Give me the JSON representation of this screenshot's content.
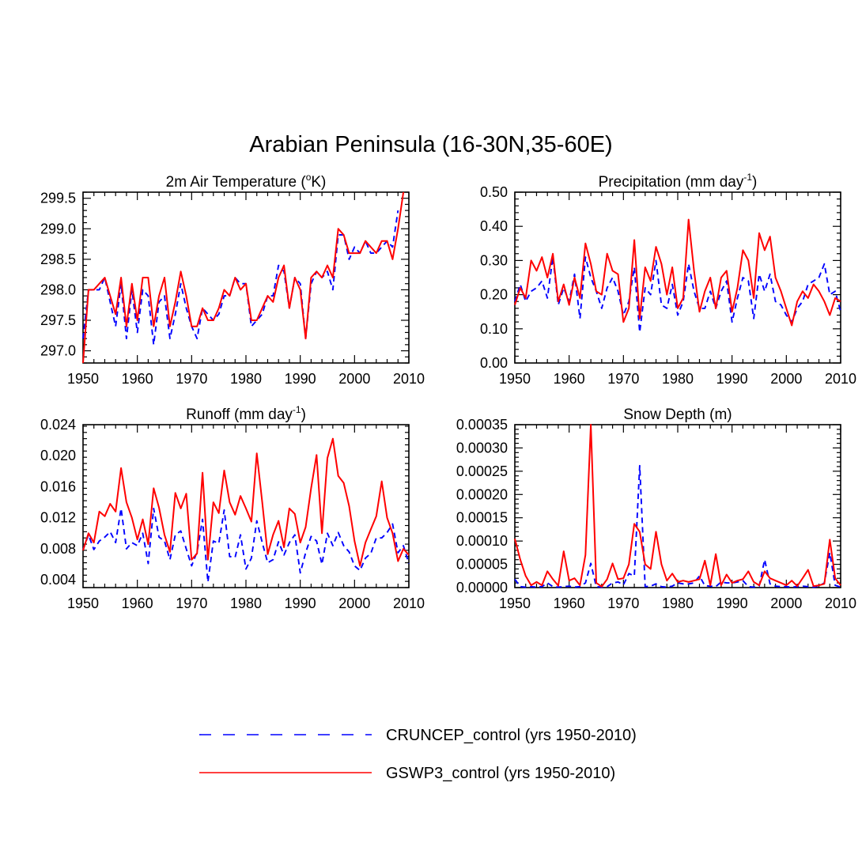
{
  "title": "Arabian Peninsula (16-30N,35-60E)",
  "colors": {
    "cruncep": "#0000ff",
    "gswp3": "#ff0000"
  },
  "legend": {
    "cruncep_label": "CRUNCEP_control (yrs 1950-2010)",
    "gswp3_label": "GSWP3_control (yrs 1950-2010)"
  },
  "chart_data": [
    {
      "type": "line",
      "title": "2m Air Temperature (",
      "title_sup": "o",
      "title_after": "K)",
      "xlim": [
        1950,
        2010
      ],
      "xticks": [
        1950,
        1960,
        1970,
        1980,
        1990,
        2000,
        2010
      ],
      "ylim": [
        296.8,
        299.6
      ],
      "yticks": [
        297.0,
        297.5,
        298.0,
        298.5,
        299.0,
        299.5
      ],
      "ytick_labels": [
        "297.0",
        "297.5",
        "298.0",
        "298.5",
        "299.0",
        "299.5"
      ],
      "series": [
        {
          "name": "CRUNCEP_control",
          "values": [
            297.2,
            298.0,
            298.0,
            298.0,
            298.2,
            297.8,
            297.4,
            298.1,
            297.2,
            298.0,
            297.3,
            298.0,
            297.9,
            297.1,
            297.8,
            297.9,
            297.2,
            297.6,
            298.1,
            297.7,
            297.4,
            297.2,
            297.7,
            297.6,
            297.5,
            297.6,
            297.9,
            297.9,
            298.2,
            298.1,
            298.1,
            297.4,
            297.5,
            297.6,
            297.9,
            297.9,
            298.4,
            298.3,
            297.7,
            298.2,
            298.1,
            297.2,
            298.1,
            298.3,
            298.2,
            298.3,
            298.0,
            298.9,
            298.9,
            298.5,
            298.7,
            298.6,
            298.8,
            298.6,
            298.6,
            298.7,
            298.8,
            298.7,
            299.3
          ]
        },
        {
          "name": "GSWP3_control",
          "values": [
            296.8,
            298.0,
            298.0,
            298.1,
            298.2,
            297.9,
            297.6,
            298.2,
            297.4,
            298.1,
            297.5,
            298.2,
            298.2,
            297.4,
            297.9,
            298.2,
            297.4,
            297.8,
            298.3,
            297.9,
            297.4,
            297.4,
            297.7,
            297.5,
            297.5,
            297.7,
            298.0,
            297.9,
            298.2,
            298.0,
            298.1,
            297.5,
            297.5,
            297.7,
            297.9,
            297.8,
            298.2,
            298.4,
            297.7,
            298.2,
            298.0,
            297.2,
            298.2,
            298.3,
            298.2,
            298.4,
            298.2,
            299.0,
            298.9,
            298.6,
            298.6,
            298.6,
            298.8,
            298.7,
            298.6,
            298.8,
            298.8,
            298.5,
            299.0,
            299.6
          ]
        }
      ]
    },
    {
      "type": "line",
      "title": "Precipitation (mm day",
      "title_sup": "-1",
      "title_after": ")",
      "xlim": [
        1950,
        2010
      ],
      "xticks": [
        1950,
        1960,
        1970,
        1980,
        1990,
        2000,
        2010
      ],
      "ylim": [
        0.0,
        0.5
      ],
      "yticks": [
        0.0,
        0.1,
        0.2,
        0.3,
        0.4,
        0.5
      ],
      "ytick_labels": [
        "0.00",
        "0.10",
        "0.20",
        "0.30",
        "0.40",
        "0.50"
      ],
      "series": [
        {
          "name": "CRUNCEP_control",
          "values": [
            0.18,
            0.23,
            0.18,
            0.21,
            0.22,
            0.24,
            0.19,
            0.31,
            0.17,
            0.22,
            0.18,
            0.26,
            0.13,
            0.31,
            0.25,
            0.21,
            0.16,
            0.22,
            0.25,
            0.21,
            0.14,
            0.18,
            0.28,
            0.09,
            0.22,
            0.2,
            0.3,
            0.17,
            0.16,
            0.23,
            0.14,
            0.18,
            0.29,
            0.21,
            0.16,
            0.16,
            0.21,
            0.16,
            0.21,
            0.24,
            0.12,
            0.19,
            0.25,
            0.24,
            0.13,
            0.26,
            0.21,
            0.26,
            0.18,
            0.17,
            0.14,
            0.12,
            0.16,
            0.18,
            0.23,
            0.24,
            0.25,
            0.29,
            0.2,
            0.21,
            0.15
          ]
        },
        {
          "name": "GSWP3_control",
          "values": [
            0.17,
            0.22,
            0.19,
            0.3,
            0.27,
            0.31,
            0.25,
            0.32,
            0.18,
            0.23,
            0.17,
            0.25,
            0.19,
            0.35,
            0.29,
            0.21,
            0.2,
            0.32,
            0.27,
            0.26,
            0.12,
            0.16,
            0.36,
            0.13,
            0.28,
            0.24,
            0.34,
            0.29,
            0.2,
            0.28,
            0.16,
            0.19,
            0.42,
            0.27,
            0.15,
            0.21,
            0.25,
            0.16,
            0.25,
            0.27,
            0.15,
            0.22,
            0.33,
            0.3,
            0.19,
            0.38,
            0.33,
            0.37,
            0.25,
            0.21,
            0.16,
            0.11,
            0.18,
            0.21,
            0.19,
            0.23,
            0.21,
            0.18,
            0.14,
            0.19,
            0.18
          ]
        }
      ]
    },
    {
      "type": "line",
      "title": "Runoff (mm day",
      "title_sup": "-1",
      "title_after": ")",
      "xlim": [
        1950,
        2010
      ],
      "xticks": [
        1950,
        1960,
        1970,
        1980,
        1990,
        2000,
        2010
      ],
      "ylim": [
        0.003,
        0.024
      ],
      "yticks": [
        0.004,
        0.008,
        0.012,
        0.016,
        0.02,
        0.024
      ],
      "ytick_labels": [
        "0.004",
        "0.008",
        "0.012",
        "0.016",
        "0.020",
        "0.024"
      ],
      "series": [
        {
          "name": "CRUNCEP_control",
          "values": [
            0.0079,
            0.0098,
            0.0079,
            0.009,
            0.0095,
            0.0102,
            0.0088,
            0.0132,
            0.008,
            0.0088,
            0.0084,
            0.01,
            0.0061,
            0.0132,
            0.0095,
            0.009,
            0.0066,
            0.0098,
            0.0103,
            0.008,
            0.0058,
            0.0076,
            0.0118,
            0.0037,
            0.009,
            0.0087,
            0.013,
            0.007,
            0.0069,
            0.0098,
            0.0054,
            0.0068,
            0.0116,
            0.0088,
            0.0062,
            0.0066,
            0.0089,
            0.0072,
            0.0088,
            0.0098,
            0.0049,
            0.0075,
            0.0096,
            0.009,
            0.006,
            0.01,
            0.0084,
            0.0101,
            0.0084,
            0.0076,
            0.0058,
            0.0052,
            0.0068,
            0.0074,
            0.0094,
            0.0094,
            0.0101,
            0.0112,
            0.0075,
            0.0084,
            0.0061
          ]
        },
        {
          "name": "GSWP3_control",
          "values": [
            0.0078,
            0.01,
            0.0088,
            0.0128,
            0.0122,
            0.0138,
            0.0128,
            0.0184,
            0.014,
            0.012,
            0.0092,
            0.0118,
            0.0086,
            0.0158,
            0.0133,
            0.0098,
            0.0076,
            0.0152,
            0.0132,
            0.0151,
            0.0066,
            0.0074,
            0.0178,
            0.0066,
            0.014,
            0.0126,
            0.0181,
            0.014,
            0.0124,
            0.0148,
            0.0132,
            0.0115,
            0.0203,
            0.014,
            0.0073,
            0.0098,
            0.0116,
            0.0082,
            0.0132,
            0.0125,
            0.0088,
            0.0108,
            0.0158,
            0.0201,
            0.01,
            0.0197,
            0.0222,
            0.0174,
            0.0165,
            0.0135,
            0.009,
            0.0058,
            0.0088,
            0.0105,
            0.0122,
            0.0167,
            0.012,
            0.01,
            0.0064,
            0.008,
            0.0072
          ]
        }
      ]
    },
    {
      "type": "line",
      "title": "Snow Depth (m)",
      "title_sup": "",
      "title_after": "",
      "xlim": [
        1950,
        2010
      ],
      "xticks": [
        1950,
        1960,
        1970,
        1980,
        1990,
        2000,
        2010
      ],
      "ylim": [
        0.0,
        0.00035
      ],
      "yticks": [
        0.0,
        5e-05,
        0.0001,
        0.00015,
        0.0002,
        0.00025,
        0.0003,
        0.00035
      ],
      "ytick_labels": [
        "0.00000",
        "0.00005",
        "0.00010",
        "0.00015",
        "0.00020",
        "0.00025",
        "0.00030",
        "0.00035"
      ],
      "series": [
        {
          "name": "CRUNCEP_control",
          "values": [
            1.8e-05,
            2e-06,
            1e-06,
            2e-06,
            1e-06,
            2e-06,
            1e-05,
            2e-06,
            1e-06,
            2e-06,
            3e-06,
            1e-06,
            2e-06,
            1e-05,
            5.2e-05,
            2e-06,
            1e-06,
            2e-06,
            1e-05,
            1.2e-05,
            6e-06,
            3e-05,
            2.5e-05,
            0.000262,
            2e-06,
            3e-06,
            8e-06,
            2e-06,
            1e-06,
            3e-06,
            1e-05,
            8e-06,
            8e-06,
            1e-05,
            2.5e-05,
            4e-06,
            3e-06,
            2e-06,
            1.2e-05,
            1e-05,
            1e-05,
            1.2e-05,
            1.5e-05,
            2e-06,
            1e-06,
            3e-06,
            6e-05,
            8e-06,
            3e-06,
            2e-06,
            2e-06,
            1e-06,
            2e-06,
            3e-06,
            2e-06,
            1e-06,
            3e-06,
            1e-05,
            7.5e-05,
            5e-06,
            1e-06
          ]
        },
        {
          "name": "GSWP3_control",
          "values": [
            0.000105,
            6e-05,
            2.5e-05,
            5e-06,
            1.2e-05,
            5e-06,
            3.5e-05,
            1.8e-05,
            4e-06,
            7.8e-05,
            1.5e-05,
            2e-05,
            5e-06,
            7e-05,
            0.00035,
            1e-05,
            2e-06,
            1.8e-05,
            5.2e-05,
            1.8e-05,
            2e-05,
            5e-05,
            0.000137,
            0.00012,
            5e-05,
            4e-05,
            0.00012,
            5e-05,
            1.5e-05,
            3e-05,
            1.2e-05,
            1.5e-05,
            1.2e-05,
            1.5e-05,
            1.8e-05,
            5.8e-05,
            5e-06,
            7.2e-05,
            5e-06,
            2.8e-05,
            1e-05,
            1.5e-05,
            1.8e-05,
            3.5e-05,
            1.2e-05,
            5e-06,
            3.5e-05,
            2e-05,
            1.5e-05,
            1e-05,
            5e-06,
            1.5e-05,
            3e-06,
            2e-05,
            3.8e-05,
            3e-06,
            5e-06,
            8e-06,
            0.000103,
            2e-05,
            5e-06
          ]
        }
      ]
    }
  ]
}
